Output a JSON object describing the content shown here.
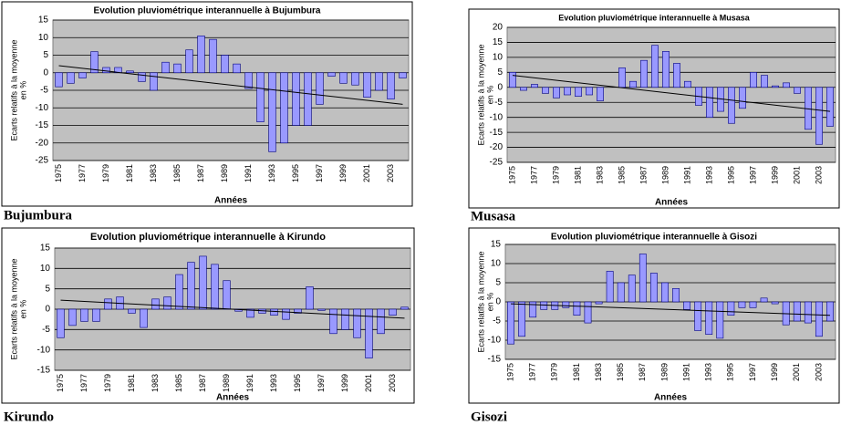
{
  "chart_data": [
    {
      "type": "bar",
      "title": "Evolution pluviométrique interannuelle à Bujumbura",
      "caption": "Bujumbura",
      "ylabel": [
        "Ecarts relatifs à la moyenne",
        "en %"
      ],
      "xlabel": "Années",
      "categories": [
        "1975",
        null,
        "1977",
        null,
        "1979",
        null,
        "1981",
        null,
        "1983",
        null,
        "1985",
        null,
        "1987",
        null,
        "1989",
        null,
        "1991",
        null,
        "1993",
        null,
        "1995",
        null,
        "1997",
        null,
        "1999",
        null,
        "2001",
        null,
        "2003",
        null
      ],
      "values": [
        -4,
        -3,
        -1.5,
        6,
        1.5,
        1.5,
        0.5,
        -2.5,
        -5,
        3,
        2.5,
        6.5,
        10.5,
        9.5,
        5,
        2.5,
        -4.5,
        -14,
        -22.5,
        -20,
        -15,
        -15,
        -9,
        -1,
        -3,
        -3.5,
        -7,
        -5,
        -7.5,
        -1.5
      ],
      "trendline": [
        2,
        -9
      ],
      "color": "#9999ff",
      "ylim": [
        -25,
        15
      ],
      "yticks": [
        -25,
        -20,
        -15,
        -10,
        -5,
        0,
        5,
        10,
        15
      ],
      "grid": true
    },
    {
      "type": "bar",
      "title": "Evolution pluviométrique interannuelle à Musasa",
      "caption": "Musasa",
      "ylabel": [
        "Ecarts relatifs à la moyenne",
        "en %"
      ],
      "xlabel": "Années",
      "categories": [
        "1975",
        null,
        "1977",
        null,
        "1979",
        null,
        "1981",
        null,
        "1983",
        null,
        "1985",
        null,
        "1987",
        null,
        "1989",
        null,
        "1991",
        null,
        "1993",
        null,
        "1995",
        null,
        "1997",
        null,
        "1999",
        null,
        "2001",
        null,
        "2003",
        null
      ],
      "values": [
        5,
        -1,
        1,
        -2,
        -3.5,
        -2.5,
        -3,
        -2.5,
        -4.5,
        0,
        6.5,
        2,
        9,
        14,
        12,
        8,
        2,
        -6,
        -10,
        -8,
        -12,
        -7,
        5,
        4,
        0.5,
        1.5,
        -2,
        -14,
        -19,
        -13
      ],
      "trendline": [
        4,
        -8
      ],
      "color": "#9999ff",
      "ylim": [
        -25,
        20
      ],
      "yticks": [
        -25,
        -20,
        -15,
        -10,
        -5,
        0,
        5,
        10,
        15,
        20
      ],
      "grid": true
    },
    {
      "type": "bar",
      "title": "Evolution pluviométrique interannuelle à Kirundo",
      "caption": "Kirundo",
      "ylabel": [
        "Ecarts relatifs à la moyenne",
        "en %"
      ],
      "xlabel": "Années",
      "categories": [
        "1975",
        null,
        "1977",
        null,
        "1979",
        null,
        "1981",
        null,
        "1983",
        null,
        "1985",
        null,
        "1987",
        null,
        "1989",
        null,
        "1991",
        null,
        "1993",
        null,
        "1995",
        null,
        "1997",
        null,
        "1999",
        null,
        "2001",
        null,
        "2003",
        null
      ],
      "values": [
        -7,
        -4,
        -3,
        -3,
        2.5,
        3,
        -1,
        -4.5,
        2.5,
        3,
        8.5,
        11.5,
        13,
        11,
        7,
        -0.5,
        -2,
        -1,
        -1.5,
        -2.5,
        -1,
        5.5,
        -0.3,
        -6,
        -5,
        -7,
        -12,
        -6,
        -1.5,
        0.5
      ],
      "trendline": [
        2.2,
        -2.2
      ],
      "color": "#9999ff",
      "ylim": [
        -15,
        15
      ],
      "yticks": [
        -15,
        -10,
        -5,
        0,
        5,
        10,
        15
      ],
      "grid": true
    },
    {
      "type": "bar",
      "title": "Evolution pluviométrique interannuelle à Gisozi",
      "caption": "Gisozi",
      "ylabel": [
        "Ecarts relatifs à la moyenne",
        "en %"
      ],
      "xlabel": "Années",
      "categories": [
        "1975",
        null,
        "1977",
        null,
        "1979",
        null,
        "1981",
        null,
        "1983",
        null,
        "1985",
        null,
        "1987",
        null,
        "1989",
        null,
        "1991",
        null,
        "1993",
        null,
        "1995",
        null,
        "1997",
        null,
        "1999",
        null,
        "2001",
        null,
        "2003",
        null
      ],
      "values": [
        -11,
        -9,
        -4,
        -2,
        -2,
        -1.5,
        -3.5,
        -5.5,
        -0.5,
        8,
        5,
        7,
        12.5,
        7.5,
        5,
        3.5,
        -2,
        -7.5,
        -8.5,
        -9.5,
        -3.5,
        -1.5,
        -1.5,
        1,
        -0.5,
        -6,
        -5,
        -5.5,
        -9,
        -5
      ],
      "trendline": [
        -0.5,
        -3.5
      ],
      "color": "#9999ff",
      "ylim": [
        -15,
        15
      ],
      "yticks": [
        -15,
        -10,
        -5,
        0,
        5,
        10,
        15
      ],
      "grid": true
    }
  ]
}
